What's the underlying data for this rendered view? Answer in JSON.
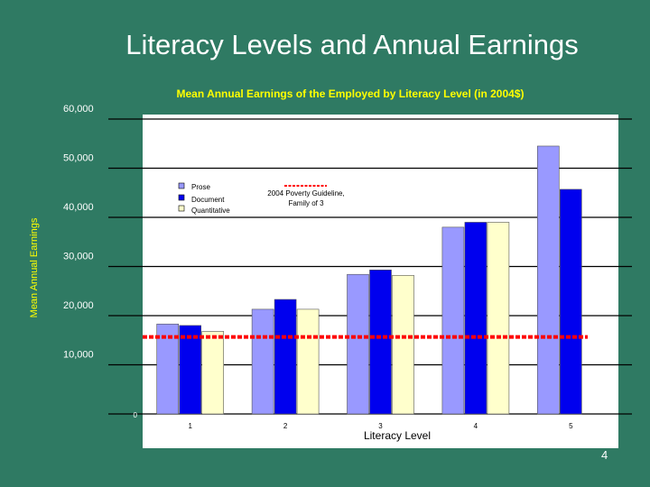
{
  "slide": {
    "title": "Literacy Levels and Annual Earnings",
    "page_number": "4"
  },
  "colors": {
    "background": "#2f7a63",
    "title": "#ffffff",
    "subtitle": "#ffff00",
    "prose": "#9999ff",
    "document": "#0000ee",
    "quantitative": "#ffffcc",
    "poverty_line": "#ff0000",
    "grid": "#000000",
    "plot_bg": "#ffffff"
  },
  "chart_data": {
    "type": "bar",
    "title": "Mean Annual Earnings of the Employed by Literacy Level (in 2004$)",
    "xlabel": "Literacy Level",
    "ylabel": "Mean Annual Earnings",
    "categories": [
      "1",
      "2",
      "3",
      "4",
      "5"
    ],
    "series": [
      {
        "name": "Prose",
        "values": [
          18300,
          21300,
          28400,
          38000,
          54500
        ]
      },
      {
        "name": "Document",
        "values": [
          18000,
          23300,
          29300,
          39000,
          45700
        ]
      },
      {
        "name": "Quantitative",
        "values": [
          16800,
          21300,
          28200,
          39000,
          null
        ]
      }
    ],
    "reference_line": {
      "label": "2004 Poverty Guideline, Family of 3",
      "label_lines": [
        "2004 Poverty Guideline,",
        "Family of 3"
      ],
      "value": 15670
    },
    "ylim": [
      0,
      60000
    ],
    "yticks": [
      "0",
      "10,000",
      "20,000",
      "30,000",
      "40,000",
      "50,000",
      "60,000"
    ],
    "ytick_values": [
      0,
      10000,
      20000,
      30000,
      40000,
      50000,
      60000
    ],
    "grid": true,
    "legend_position": "top-left"
  }
}
